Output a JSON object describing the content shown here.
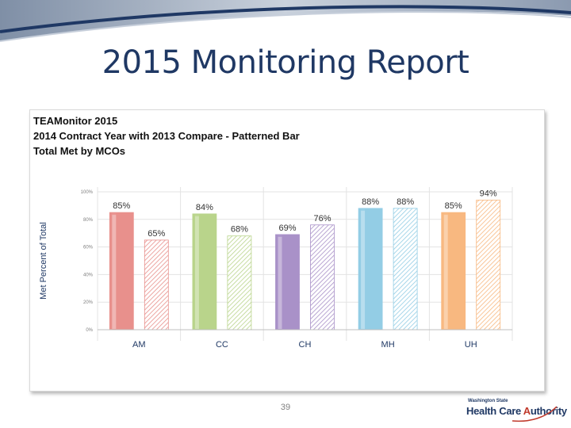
{
  "slide": {
    "title": "2015 Monitoring Report",
    "page_number": "39",
    "logo": {
      "small_text": "Washington State",
      "big_text_a": "Health Care ",
      "big_text_b": "A",
      "big_text_c": "uthority"
    }
  },
  "colors": {
    "title": "#1f3864",
    "header_band": "#1f3864",
    "AM": "#e8908c",
    "CC": "#b9d48b",
    "CH": "#a991c8",
    "MH": "#93cde5",
    "UH": "#f8b880"
  },
  "chart_data": {
    "type": "bar",
    "title_lines": [
      "TEAMonitor 2015",
      "2014 Contract Year with 2013 Compare - Patterned Bar",
      "Total Met by MCOs"
    ],
    "xlabel": "",
    "ylabel": "Met Percent of Total",
    "categories": [
      "AM",
      "CC",
      "CH",
      "MH",
      "UH"
    ],
    "yticks": [
      "0%",
      "20%",
      "40%",
      "60%",
      "80%",
      "100%"
    ],
    "ylim": [
      0,
      100
    ],
    "grid": true,
    "series": [
      {
        "pattern": "solid",
        "values": [
          85,
          84,
          69,
          88,
          85
        ],
        "labels": [
          "85%",
          "84%",
          "69%",
          "88%",
          "85%"
        ]
      },
      {
        "pattern": "hatched",
        "values": [
          65,
          68,
          76,
          88,
          94
        ],
        "labels": [
          "65%",
          "68%",
          "76%",
          "88%",
          "94%"
        ]
      }
    ]
  }
}
